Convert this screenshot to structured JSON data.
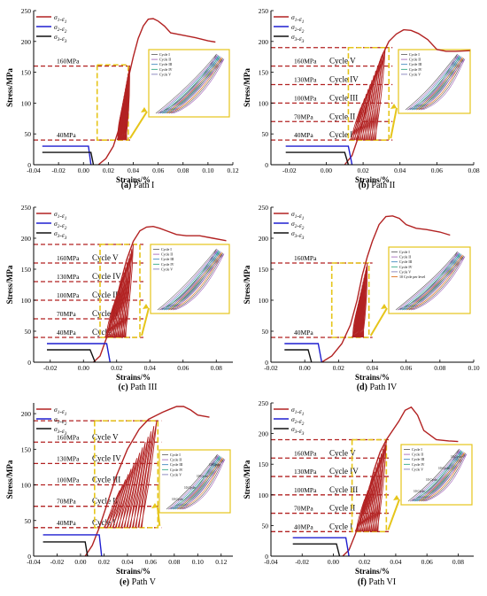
{
  "figure": {
    "panels": [
      {
        "id": "a",
        "caption_letter": "(a)",
        "caption_text": "Path I"
      },
      {
        "id": "b",
        "caption_letter": "(b)",
        "caption_text": "Path II"
      },
      {
        "id": "c",
        "caption_letter": "(c)",
        "caption_text": "Path III"
      },
      {
        "id": "d",
        "caption_letter": "(d)",
        "caption_text": "Path IV"
      },
      {
        "id": "e",
        "caption_letter": "(e)",
        "caption_text": "Path V"
      },
      {
        "id": "f",
        "caption_letter": "(f)",
        "caption_text": "Path VI"
      }
    ]
  },
  "colors": {
    "sigma1": "#b22222",
    "sigma2": "#1f1fd0",
    "sigma3": "#111111",
    "load_line": "#b22222",
    "zoom_box": "#e6c51a",
    "axis": "#000000"
  },
  "chart_data": [
    {
      "id": "a",
      "type": "line",
      "xlabel": "Strains/%",
      "ylabel": "Stress/MPa",
      "xlim": [
        -0.04,
        0.12
      ],
      "ylim": [
        0,
        250
      ],
      "xticks": [
        "-0.04",
        "-0.02",
        "0.00",
        "0.02",
        "0.04",
        "0.06",
        "0.08",
        "0.10",
        "0.12"
      ],
      "yticks": [
        "0",
        "50",
        "100",
        "150",
        "200",
        "250"
      ],
      "legend": [
        "σ1-ε1",
        "σ2-ε2",
        "σ3-ε3"
      ],
      "load_lines": [
        {
          "y": 160,
          "label": "160MPa"
        },
        {
          "y": 40,
          "label": "40MPa"
        }
      ],
      "inset_legend": [
        "Cycle I",
        "Cycle II",
        "Cycle III",
        "Cycle IV",
        "Cycle V"
      ],
      "cycle_band": {
        "x": [
          0.027,
          0.037
        ],
        "y": [
          40,
          160
        ]
      },
      "zoom_box": {
        "x": [
          0.011,
          0.036
        ],
        "y": [
          40,
          162
        ]
      },
      "series": [
        {
          "name": "σ1-ε1",
          "x": [
            0.012,
            0.018,
            0.024,
            0.028,
            0.033,
            0.036,
            0.04,
            0.044,
            0.048,
            0.052,
            0.056,
            0.06,
            0.065,
            0.07,
            0.08,
            0.09,
            0.1,
            0.106
          ],
          "y": [
            0,
            10,
            30,
            55,
            95,
            140,
            175,
            205,
            225,
            236,
            237,
            233,
            225,
            214,
            210,
            206,
            201,
            199
          ]
        },
        {
          "name": "σ2-ε2",
          "x": [
            -0.033,
            -0.02,
            -0.005,
            0.004,
            0.006
          ],
          "y": [
            30,
            30,
            30,
            30,
            0
          ]
        },
        {
          "name": "σ3-ε3",
          "x": [
            -0.033,
            -0.015,
            0.003,
            0.006,
            0.008
          ],
          "y": [
            20,
            20,
            20,
            20,
            0
          ]
        }
      ]
    },
    {
      "id": "b",
      "type": "line",
      "xlabel": "Strains/%",
      "ylabel": "Stress/MPa",
      "xlim": [
        -0.03,
        0.08
      ],
      "ylim": [
        0,
        250
      ],
      "xticks": [
        "-0.02",
        "0.00",
        "0.02",
        "0.04",
        "0.06",
        "0.08"
      ],
      "yticks": [
        "0",
        "50",
        "100",
        "150",
        "200",
        "250"
      ],
      "legend": [
        "σ1-ε1",
        "σ2-ε2",
        "σ3-ε3"
      ],
      "load_lines": [
        {
          "y": 160,
          "label": "160MPa"
        },
        {
          "y": 130,
          "label": "130MPa"
        },
        {
          "y": 100,
          "label": "100MPa"
        },
        {
          "y": 70,
          "label": "70MPa"
        },
        {
          "y": 40,
          "label": "40MPa"
        },
        {
          "y": 190,
          "label": ""
        }
      ],
      "cycle_labels": [
        {
          "y": 160,
          "label": "Cycle V"
        },
        {
          "y": 130,
          "label": "Cycle IV"
        },
        {
          "y": 100,
          "label": "Cycle III"
        },
        {
          "y": 70,
          "label": "Cycle II"
        },
        {
          "y": 40,
          "label": "Cycle I"
        }
      ],
      "inset_legend": [
        "Cycle I",
        "Cycle II",
        "Cycle III",
        "Cycle IV",
        "Cycle V"
      ],
      "cycle_band": {
        "x": [
          0.013,
          0.032
        ],
        "y": [
          40,
          190
        ]
      },
      "zoom_box": {
        "x": [
          0.012,
          0.034
        ],
        "y": [
          40,
          190
        ]
      },
      "series": [
        {
          "name": "σ1-ε1",
          "x": [
            0.01,
            0.014,
            0.018,
            0.022,
            0.026,
            0.03,
            0.034,
            0.038,
            0.042,
            0.046,
            0.05,
            0.055,
            0.06,
            0.065,
            0.07,
            0.078
          ],
          "y": [
            0,
            15,
            50,
            95,
            140,
            175,
            200,
            212,
            219,
            218,
            213,
            203,
            187,
            184,
            184,
            185
          ]
        },
        {
          "name": "σ2-ε2",
          "x": [
            -0.022,
            -0.01,
            0.0,
            0.008,
            0.012,
            0.014
          ],
          "y": [
            30,
            30,
            30,
            30,
            30,
            0
          ]
        },
        {
          "name": "σ3-ε3",
          "x": [
            -0.022,
            -0.008,
            0.004,
            0.01,
            0.012
          ],
          "y": [
            20,
            20,
            20,
            20,
            0
          ]
        }
      ]
    },
    {
      "id": "c",
      "type": "line",
      "xlabel": "Strains/%",
      "ylabel": "Stress/MPa",
      "xlim": [
        -0.03,
        0.09
      ],
      "ylim": [
        0,
        250
      ],
      "xticks": [
        "-0.02",
        "0.00",
        "0.02",
        "0.04",
        "0.06",
        "0.08"
      ],
      "yticks": [
        "0",
        "50",
        "100",
        "150",
        "200",
        "250"
      ],
      "legend": [
        "σ1-ε1",
        "σ2-ε2",
        "σ3-ε3"
      ],
      "load_lines": [
        {
          "y": 160,
          "label": "160MPa"
        },
        {
          "y": 130,
          "label": "130MPa"
        },
        {
          "y": 100,
          "label": "100MPa"
        },
        {
          "y": 70,
          "label": "70MPa"
        },
        {
          "y": 40,
          "label": "40MPa"
        },
        {
          "y": 190,
          "label": ""
        }
      ],
      "cycle_labels": [
        {
          "y": 160,
          "label": "Cycle V"
        },
        {
          "y": 130,
          "label": "Cycle IV"
        },
        {
          "y": 100,
          "label": "Cycle III"
        },
        {
          "y": 70,
          "label": "Cycle II"
        },
        {
          "y": 40,
          "label": "Cycle I"
        }
      ],
      "inset_legend": [
        "Cycle I",
        "Cycle II",
        "Cycle III",
        "Cycle IV",
        "Cycle V"
      ],
      "cycle_band": {
        "x": [
          0.013,
          0.03
        ],
        "y": [
          40,
          190
        ]
      },
      "zoom_box": {
        "x": [
          0.01,
          0.034
        ],
        "y": [
          40,
          190
        ]
      },
      "series": [
        {
          "name": "σ1-ε1",
          "x": [
            0.006,
            0.01,
            0.014,
            0.018,
            0.022,
            0.026,
            0.03,
            0.034,
            0.038,
            0.042,
            0.046,
            0.05,
            0.056,
            0.062,
            0.07,
            0.078,
            0.086
          ],
          "y": [
            0,
            10,
            40,
            80,
            125,
            165,
            195,
            212,
            218,
            219,
            216,
            212,
            206,
            204,
            204,
            200,
            196
          ]
        },
        {
          "name": "σ2-ε2",
          "x": [
            -0.022,
            -0.01,
            0.005,
            0.014,
            0.016
          ],
          "y": [
            30,
            30,
            30,
            30,
            0
          ]
        },
        {
          "name": "σ3-ε3",
          "x": [
            -0.022,
            -0.008,
            0.004,
            0.007
          ],
          "y": [
            20,
            20,
            20,
            0
          ]
        }
      ]
    },
    {
      "id": "d",
      "type": "line",
      "xlabel": "Strains/%",
      "ylabel": "Stress/MPa",
      "xlim": [
        -0.02,
        0.1
      ],
      "ylim": [
        0,
        250
      ],
      "xticks": [
        "-0.02",
        "0.00",
        "0.02",
        "0.04",
        "0.06",
        "0.08",
        "0.10"
      ],
      "yticks": [
        "0",
        "50",
        "100",
        "150",
        "200",
        "250"
      ],
      "legend": [
        "σ1-ε1",
        "σ2-ε2",
        "σ3-ε3"
      ],
      "load_lines": [
        {
          "y": 160,
          "label": "160MPa"
        },
        {
          "y": 40,
          "label": "40MPa"
        }
      ],
      "inset_legend": [
        "Cycle I",
        "Cycle II",
        "Cycle III",
        "Cycle IV",
        "Cycle V",
        "10 Cycle per level"
      ],
      "cycle_band": {
        "x": [
          0.028,
          0.037
        ],
        "y": [
          40,
          160
        ]
      },
      "zoom_box": {
        "x": [
          0.016,
          0.038
        ],
        "y": [
          40,
          160
        ]
      },
      "series": [
        {
          "name": "σ1-ε1",
          "x": [
            0.01,
            0.016,
            0.022,
            0.027,
            0.031,
            0.034,
            0.037,
            0.04,
            0.044,
            0.048,
            0.052,
            0.056,
            0.06,
            0.066,
            0.072,
            0.08,
            0.086
          ],
          "y": [
            0,
            10,
            30,
            60,
            100,
            140,
            170,
            195,
            222,
            235,
            236,
            232,
            222,
            216,
            214,
            210,
            205
          ]
        },
        {
          "name": "σ2-ε2",
          "x": [
            -0.012,
            0.0,
            0.008,
            0.01
          ],
          "y": [
            30,
            30,
            30,
            0
          ]
        },
        {
          "name": "σ3-ε3",
          "x": [
            -0.012,
            -0.004,
            0.002,
            0.004
          ],
          "y": [
            20,
            20,
            20,
            0
          ]
        }
      ]
    },
    {
      "id": "e",
      "type": "line",
      "xlabel": "Strains/%",
      "ylabel": "Stress/MPa",
      "xlim": [
        -0.04,
        0.13
      ],
      "ylim": [
        0,
        215
      ],
      "xticks": [
        "-0.04",
        "-0.02",
        "0.00",
        "0.02",
        "0.04",
        "0.06",
        "0.08",
        "0.10",
        "0.12"
      ],
      "yticks": [
        "0",
        "50",
        "100",
        "150",
        "200"
      ],
      "legend": [
        "σ1-ε1",
        "σ2-ε2",
        "σ3-ε3"
      ],
      "load_lines": [
        {
          "y": 160,
          "label": "160MPa"
        },
        {
          "y": 130,
          "label": "130MPa"
        },
        {
          "y": 100,
          "label": "100MPa"
        },
        {
          "y": 70,
          "label": "70MPa"
        },
        {
          "y": 40,
          "label": "40MPa"
        },
        {
          "y": 190,
          "label": ""
        }
      ],
      "cycle_labels": [
        {
          "y": 160,
          "label": "Cycle V"
        },
        {
          "y": 130,
          "label": "Cycle IV"
        },
        {
          "y": 100,
          "label": "Cycle III"
        },
        {
          "y": 70,
          "label": "Cycle II"
        },
        {
          "y": 40,
          "label": "Cycle I"
        }
      ],
      "inset_legend": [
        "Cycle I",
        "Cycle II",
        "Cycle III",
        "Cycle IV",
        "Cycle V"
      ],
      "inset_notes": [
        "10 Cycle",
        "10 Cycle",
        "10 Cycle",
        "10 Cycle"
      ],
      "cycle_band": {
        "x": [
          0.02,
          0.065
        ],
        "y": [
          40,
          190
        ]
      },
      "zoom_box": {
        "x": [
          0.012,
          0.066
        ],
        "y": [
          40,
          190
        ]
      },
      "series": [
        {
          "name": "σ1-ε1",
          "x": [
            0.004,
            0.01,
            0.016,
            0.022,
            0.03,
            0.04,
            0.05,
            0.058,
            0.064,
            0.07,
            0.076,
            0.082,
            0.088,
            0.094,
            0.1,
            0.11
          ],
          "y": [
            0,
            15,
            40,
            70,
            110,
            150,
            178,
            192,
            197,
            202,
            206,
            210,
            210,
            205,
            198,
            195
          ]
        },
        {
          "name": "σ2-ε2",
          "x": [
            -0.032,
            -0.015,
            0.005,
            0.016,
            0.018
          ],
          "y": [
            30,
            30,
            30,
            30,
            0
          ]
        },
        {
          "name": "σ3-ε3",
          "x": [
            -0.032,
            -0.01,
            0.004,
            0.006
          ],
          "y": [
            20,
            20,
            20,
            0
          ]
        }
      ]
    },
    {
      "id": "f",
      "type": "line",
      "xlabel": "Strains/%",
      "ylabel": "Stress/MPa",
      "xlim": [
        -0.04,
        0.09
      ],
      "ylim": [
        0,
        250
      ],
      "xticks": [
        "-0.04",
        "-0.02",
        "0.00",
        "0.02",
        "0.04",
        "0.06",
        "0.08"
      ],
      "yticks": [
        "0",
        "50",
        "100",
        "150",
        "200",
        "250"
      ],
      "legend": [
        "σ1-ε1",
        "σ2-ε2",
        "σ3-ε3"
      ],
      "load_lines": [
        {
          "y": 160,
          "label": "160MPa"
        },
        {
          "y": 130,
          "label": "130MPa"
        },
        {
          "y": 100,
          "label": "100MPa"
        },
        {
          "y": 70,
          "label": "70MPa"
        },
        {
          "y": 40,
          "label": "40MPa"
        },
        {
          "y": 190,
          "label": ""
        }
      ],
      "cycle_labels": [
        {
          "y": 160,
          "label": "Cycle V"
        },
        {
          "y": 130,
          "label": "Cycle IV"
        },
        {
          "y": 100,
          "label": "Cycle III"
        },
        {
          "y": 70,
          "label": "Cycle II"
        },
        {
          "y": 40,
          "label": "Cycle I"
        }
      ],
      "inset_legend": [
        "Cycle I",
        "Cycle II",
        "Cycle III",
        "Cycle IV",
        "Cycle V"
      ],
      "inset_notes": [
        "10 Cycle",
        "10 Cycle",
        "10 Cycle",
        "10 Cycle"
      ],
      "cycle_band": {
        "x": [
          0.014,
          0.034
        ],
        "y": [
          40,
          190
        ]
      },
      "zoom_box": {
        "x": [
          0.012,
          0.034
        ],
        "y": [
          40,
          190
        ]
      },
      "series": [
        {
          "name": "σ1-ε1",
          "x": [
            0.006,
            0.01,
            0.014,
            0.018,
            0.022,
            0.026,
            0.03,
            0.034,
            0.038,
            0.042,
            0.046,
            0.05,
            0.054,
            0.058,
            0.066,
            0.074,
            0.08
          ],
          "y": [
            0,
            10,
            35,
            65,
            100,
            140,
            170,
            190,
            205,
            220,
            238,
            243,
            230,
            205,
            190,
            188,
            187
          ]
        },
        {
          "name": "σ2-ε2",
          "x": [
            -0.026,
            -0.012,
            0.0,
            0.008,
            0.01
          ],
          "y": [
            30,
            30,
            30,
            30,
            0
          ]
        },
        {
          "name": "σ3-ε3",
          "x": [
            -0.026,
            -0.01,
            0.002,
            0.004
          ],
          "y": [
            20,
            20,
            20,
            0
          ]
        }
      ]
    }
  ]
}
